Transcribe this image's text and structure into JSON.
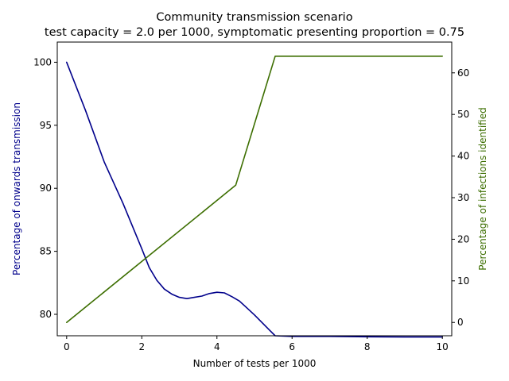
{
  "chart_data": {
    "type": "line",
    "title": "Community transmission scenario",
    "subtitle": "test capacity = 2.0 per 1000, symptomatic presenting proportion = 0.75",
    "xlabel": "Number of tests per 1000",
    "ylabel_left": "Percentage of onwards transmission",
    "ylabel_right": "Percentage of infections identified",
    "xlim": [
      -0.25,
      10.25
    ],
    "ylim_left": [
      78.3,
      101.6
    ],
    "ylim_right": [
      -3.2,
      67.4
    ],
    "x_ticks": [
      0,
      2,
      4,
      6,
      8,
      10
    ],
    "y_left_ticks": [
      80,
      85,
      90,
      95,
      100
    ],
    "y_right_ticks": [
      0,
      10,
      20,
      30,
      40,
      50,
      60
    ],
    "grid": false,
    "series": [
      {
        "axis": "left",
        "color": "#00008b",
        "x": [
          0,
          0.5,
          1.0,
          1.5,
          2.0,
          2.2,
          2.4,
          2.6,
          2.8,
          3.0,
          3.2,
          3.4,
          3.6,
          3.8,
          4.0,
          4.2,
          4.4,
          4.6,
          4.8,
          5.0,
          5.2,
          5.4,
          5.55,
          6,
          7,
          8,
          9,
          10
        ],
        "y": [
          100,
          96.2,
          92.1,
          88.8,
          85.2,
          83.7,
          82.7,
          82.0,
          81.6,
          81.35,
          81.25,
          81.35,
          81.45,
          81.65,
          81.75,
          81.7,
          81.4,
          81.05,
          80.5,
          79.95,
          79.35,
          78.75,
          78.3,
          78.25,
          78.25,
          78.22,
          78.2,
          78.2
        ]
      },
      {
        "axis": "right",
        "color": "#3c6e00",
        "x": [
          0,
          4.5,
          5.55,
          6,
          7,
          8,
          9,
          10
        ],
        "y": [
          0,
          33,
          64,
          64,
          64,
          64,
          64,
          64
        ]
      }
    ]
  }
}
